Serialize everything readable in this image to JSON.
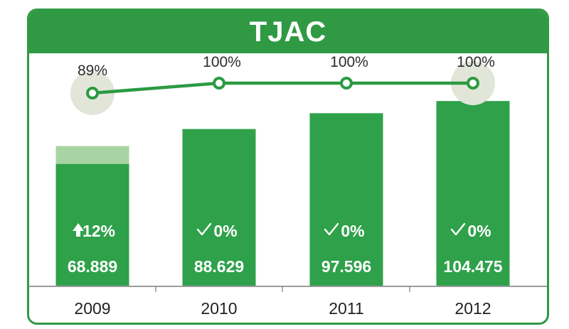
{
  "title": "TJAC",
  "colors": {
    "bar": "#2fa14a",
    "bar_ghost": "#a7d4a2",
    "line": "#2b9a42",
    "halo": "#e2e6d8",
    "frame": "#2f9a43"
  },
  "chart_data": [
    {
      "type": "bar",
      "categories": [
        "2009",
        "2010",
        "2011",
        "2012"
      ],
      "values": [
        68889,
        88629,
        97596,
        104475
      ],
      "value_labels": [
        "68.889",
        "88.629",
        "97.596",
        "104.475"
      ],
      "previous_value_2009_estimate": 79000,
      "change_labels": [
        "12%",
        "0%",
        "0%",
        "0%"
      ],
      "change_icons": [
        "arrow-up-icon",
        "check-icon",
        "check-icon",
        "check-icon"
      ],
      "ylim": [
        0,
        115000
      ]
    },
    {
      "type": "line",
      "categories": [
        "2009",
        "2010",
        "2011",
        "2012"
      ],
      "values": [
        89,
        100,
        100,
        100
      ],
      "labels": [
        "89%",
        "100%",
        "100%",
        "100%"
      ],
      "ylim": [
        0,
        100
      ],
      "highlighted": [
        "2009",
        "2012"
      ]
    }
  ]
}
